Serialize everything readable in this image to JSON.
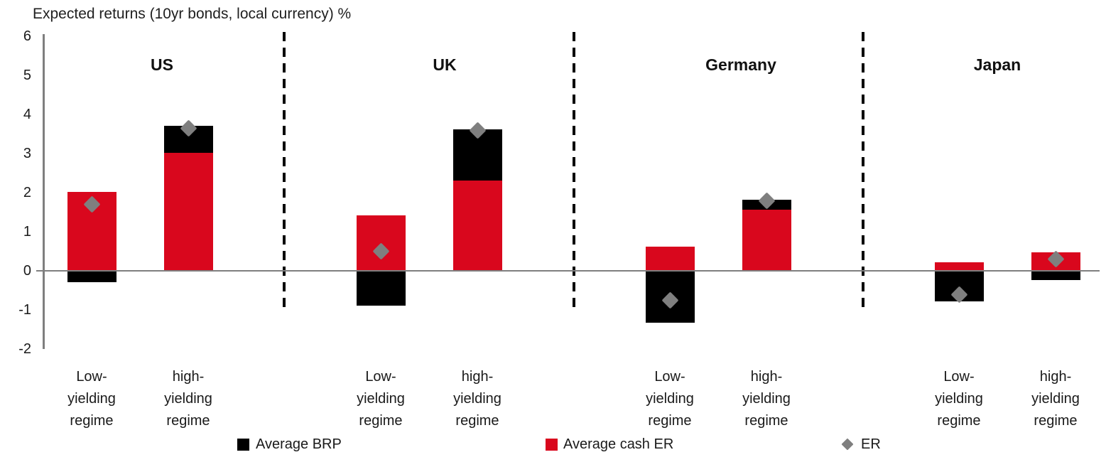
{
  "title": "Expected returns (10yr bonds, local currency) %",
  "colors": {
    "brp_black": "#000000",
    "cash_red": "#d9071d",
    "er_gray": "#7f7f7f",
    "axis_gray": "#7f7f7f",
    "text": "#1a1a1a"
  },
  "y_axis": {
    "ticks": [
      "6",
      "5",
      "4",
      "3",
      "2",
      "1",
      "0",
      "-1",
      "-2"
    ],
    "tick_values": [
      6,
      5,
      4,
      3,
      2,
      1,
      0,
      -1,
      -2
    ],
    "min": -2,
    "max": 6
  },
  "legend": [
    {
      "label": "Average BRP",
      "swatch": "square",
      "color": "#000000"
    },
    {
      "label": "Average cash ER",
      "swatch": "square",
      "color": "#d9071d"
    },
    {
      "label": "ER",
      "swatch": "diamond",
      "color": "#7f7f7f"
    }
  ],
  "chart_data": {
    "type": "bar",
    "stacked": true,
    "title": "Expected returns (10yr bonds, local currency) %",
    "ylabel": "",
    "xlabel": "",
    "ylim": [
      -2,
      6
    ],
    "grid": false,
    "legend_position": "bottom",
    "regime_label_lines_low": [
      "Low-",
      "yielding",
      "regime"
    ],
    "regime_label_lines_high": [
      "high-",
      "yielding",
      "regime"
    ],
    "series_names": [
      "Average BRP",
      "Average cash ER",
      "ER"
    ],
    "groups": [
      {
        "country": "US",
        "bars": [
          {
            "regime": "Low-yielding regime",
            "avg_brp": -0.3,
            "avg_cash_er": 2.0,
            "er": 1.7
          },
          {
            "regime": "high-yielding regime",
            "avg_brp": 0.7,
            "avg_cash_er": 3.0,
            "er": 3.65
          }
        ]
      },
      {
        "country": "UK",
        "bars": [
          {
            "regime": "Low-yielding regime",
            "avg_brp": -0.9,
            "avg_cash_er": 1.4,
            "er": 0.5
          },
          {
            "regime": "high-yielding regime",
            "avg_brp": 1.3,
            "avg_cash_er": 2.3,
            "er": 3.6
          }
        ]
      },
      {
        "country": "Germany",
        "bars": [
          {
            "regime": "Low-yielding regime",
            "avg_brp": -1.35,
            "avg_cash_er": 0.6,
            "er": -0.75
          },
          {
            "regime": "high-yielding regime",
            "avg_brp": 0.25,
            "avg_cash_er": 1.55,
            "er": 1.8
          }
        ]
      },
      {
        "country": "Japan",
        "bars": [
          {
            "regime": "Low-yielding regime",
            "avg_brp": -0.8,
            "avg_cash_er": 0.2,
            "er": -0.6
          },
          {
            "regime": "high-yielding regime",
            "avg_brp": -0.25,
            "avg_cash_er": 0.45,
            "er": 0.3
          }
        ]
      }
    ]
  }
}
